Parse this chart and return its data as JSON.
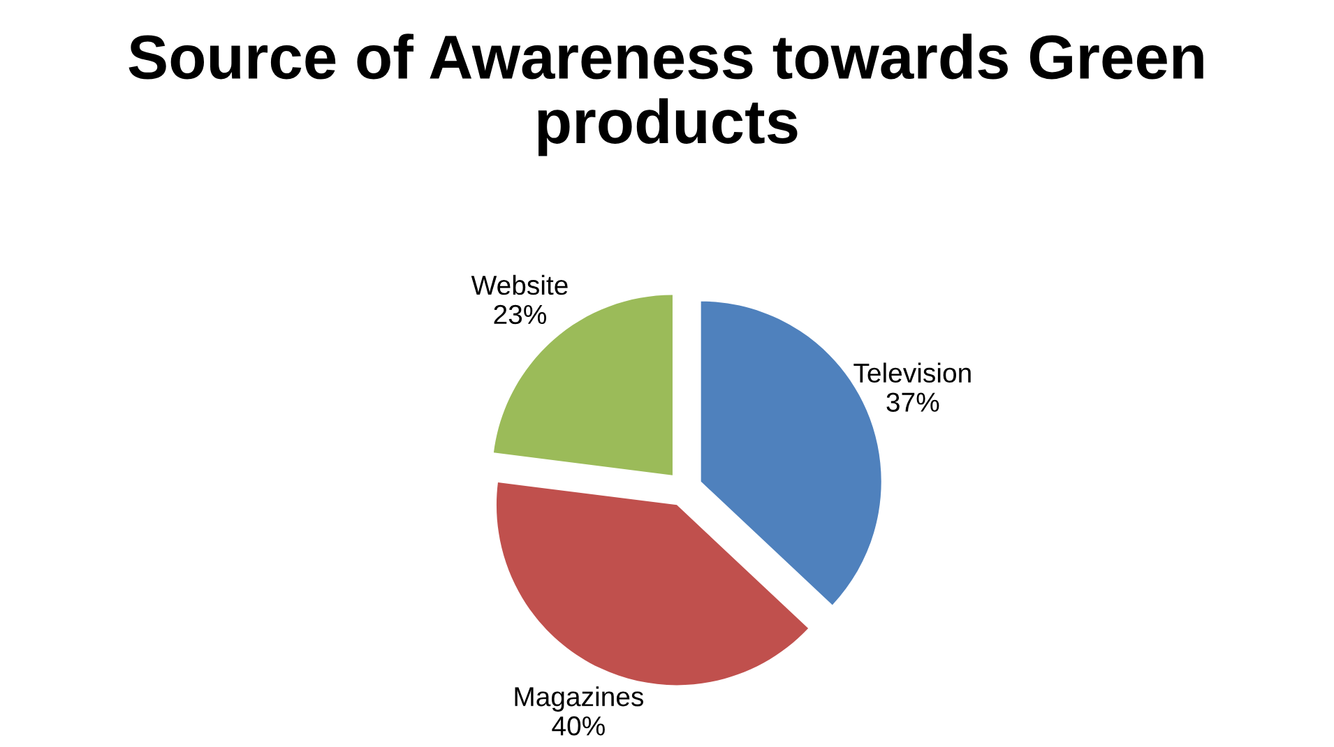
{
  "chart_data": {
    "type": "pie",
    "title": "Source of Awareness towards Green products",
    "categories": [
      "Television",
      "Magazines",
      "Website"
    ],
    "values": [
      37,
      40,
      23
    ],
    "value_labels": [
      "37%",
      "40%",
      "23%"
    ],
    "colors": [
      "#4f81bd",
      "#c0504d",
      "#9bbb59"
    ]
  }
}
